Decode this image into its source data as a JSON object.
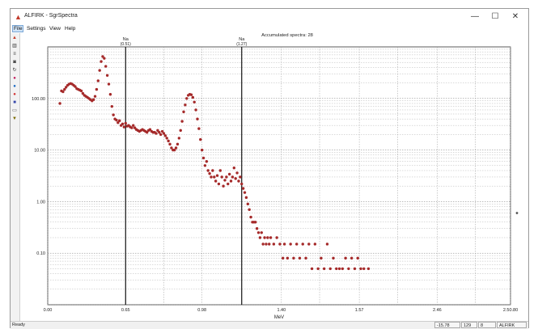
{
  "window": {
    "title": "ALFIRK - SgrSpectra",
    "icon": "alfirk-app-icon",
    "minimize": "—",
    "maximize": "☐",
    "close": "✕"
  },
  "menu": {
    "items": [
      {
        "label": "File",
        "active": true
      },
      {
        "label": "Settings",
        "active": false
      },
      {
        "label": "View",
        "active": false
      },
      {
        "label": "Help",
        "active": false
      }
    ]
  },
  "toolbar": {
    "icons": [
      "chart-icon",
      "bars-icon",
      "list-icon",
      "camera-icon",
      "refresh-icon",
      "ca-icon",
      "sc-icon",
      "cobalt-icon",
      "co-icon",
      "print-icon",
      "filter-icon"
    ]
  },
  "status": {
    "text": "Ready",
    "panes": [
      "-15.78",
      "129",
      "8",
      "ALFIRK"
    ]
  },
  "chart_data": {
    "type": "scatter",
    "title": "Accumulated spectra: 28",
    "xlabel": "MeV",
    "ylabel": "",
    "y_scale": "log",
    "xlim": [
      0.0,
      3.03
    ],
    "ylim": [
      0.01,
      1000
    ],
    "grid": true,
    "x_ticks": [
      "0.00",
      "0.65",
      "0.98",
      "1.40",
      "1.57",
      "2.46",
      "2.50.80"
    ],
    "y_ticks": [
      "100.00",
      "10.00",
      "1.00",
      "0.10"
    ],
    "markers": [
      {
        "label": "Na",
        "sublabel": "(0.51)",
        "x": 0.51
      },
      {
        "label": "Na",
        "sublabel": "(1.27)",
        "x": 1.27
      }
    ],
    "series": [
      {
        "color": "#a52a2a",
        "points": [
          [
            0.08,
            80
          ],
          [
            0.09,
            140
          ],
          [
            0.1,
            135
          ],
          [
            0.11,
            150
          ],
          [
            0.12,
            165
          ],
          [
            0.13,
            180
          ],
          [
            0.14,
            190
          ],
          [
            0.15,
            195
          ],
          [
            0.16,
            190
          ],
          [
            0.17,
            180
          ],
          [
            0.18,
            170
          ],
          [
            0.19,
            155
          ],
          [
            0.2,
            150
          ],
          [
            0.21,
            145
          ],
          [
            0.22,
            140
          ],
          [
            0.23,
            125
          ],
          [
            0.24,
            115
          ],
          [
            0.25,
            110
          ],
          [
            0.26,
            105
          ],
          [
            0.27,
            100
          ],
          [
            0.28,
            95
          ],
          [
            0.29,
            90
          ],
          [
            0.3,
            95
          ],
          [
            0.31,
            110
          ],
          [
            0.32,
            150
          ],
          [
            0.33,
            220
          ],
          [
            0.34,
            350
          ],
          [
            0.35,
            520
          ],
          [
            0.36,
            650
          ],
          [
            0.37,
            600
          ],
          [
            0.38,
            420
          ],
          [
            0.39,
            280
          ],
          [
            0.4,
            190
          ],
          [
            0.41,
            120
          ],
          [
            0.42,
            70
          ],
          [
            0.43,
            48
          ],
          [
            0.44,
            40
          ],
          [
            0.45,
            38
          ],
          [
            0.46,
            34
          ],
          [
            0.47,
            37
          ],
          [
            0.48,
            30
          ],
          [
            0.49,
            32
          ],
          [
            0.5,
            28
          ],
          [
            0.51,
            33
          ],
          [
            0.52,
            29
          ],
          [
            0.53,
            30
          ],
          [
            0.54,
            28
          ],
          [
            0.55,
            27
          ],
          [
            0.56,
            30
          ],
          [
            0.57,
            27
          ],
          [
            0.58,
            25
          ],
          [
            0.59,
            24
          ],
          [
            0.6,
            23
          ],
          [
            0.61,
            24
          ],
          [
            0.62,
            25
          ],
          [
            0.63,
            24
          ],
          [
            0.64,
            23
          ],
          [
            0.65,
            22
          ],
          [
            0.66,
            24
          ],
          [
            0.67,
            25
          ],
          [
            0.68,
            23
          ],
          [
            0.69,
            22
          ],
          [
            0.7,
            22
          ],
          [
            0.71,
            21
          ],
          [
            0.72,
            24
          ],
          [
            0.73,
            22
          ],
          [
            0.74,
            20
          ],
          [
            0.75,
            23
          ],
          [
            0.76,
            21
          ],
          [
            0.77,
            19
          ],
          [
            0.78,
            17
          ],
          [
            0.79,
            15
          ],
          [
            0.8,
            13
          ],
          [
            0.81,
            11
          ],
          [
            0.82,
            10
          ],
          [
            0.83,
            10
          ],
          [
            0.84,
            11
          ],
          [
            0.85,
            13
          ],
          [
            0.86,
            17
          ],
          [
            0.87,
            24
          ],
          [
            0.88,
            36
          ],
          [
            0.89,
            55
          ],
          [
            0.9,
            75
          ],
          [
            0.91,
            100
          ],
          [
            0.92,
            115
          ],
          [
            0.93,
            120
          ],
          [
            0.94,
            118
          ],
          [
            0.95,
            105
          ],
          [
            0.96,
            85
          ],
          [
            0.97,
            60
          ],
          [
            0.98,
            40
          ],
          [
            0.99,
            26
          ],
          [
            1.0,
            16
          ],
          [
            1.01,
            10
          ],
          [
            1.02,
            7
          ],
          [
            1.03,
            5
          ],
          [
            1.04,
            6
          ],
          [
            1.05,
            4
          ],
          [
            1.06,
            3.5
          ],
          [
            1.07,
            3
          ],
          [
            1.08,
            4
          ],
          [
            1.09,
            3
          ],
          [
            1.1,
            2.5
          ],
          [
            1.11,
            3.2
          ],
          [
            1.12,
            2.2
          ],
          [
            1.13,
            4
          ],
          [
            1.14,
            3
          ],
          [
            1.15,
            2
          ],
          [
            1.16,
            2.6
          ],
          [
            1.17,
            3
          ],
          [
            1.18,
            2.2
          ],
          [
            1.19,
            3.4
          ],
          [
            1.2,
            2.5
          ],
          [
            1.21,
            3
          ],
          [
            1.22,
            4.5
          ],
          [
            1.23,
            2.8
          ],
          [
            1.24,
            3.6
          ],
          [
            1.25,
            2.5
          ],
          [
            1.26,
            3
          ],
          [
            1.27,
            2.2
          ],
          [
            1.28,
            1.8
          ],
          [
            1.29,
            1.5
          ],
          [
            1.3,
            1.2
          ],
          [
            1.31,
            0.9
          ],
          [
            1.32,
            0.7
          ],
          [
            1.33,
            0.5
          ],
          [
            1.34,
            0.4
          ],
          [
            1.35,
            0.4
          ],
          [
            1.36,
            0.4
          ],
          [
            1.37,
            0.3
          ],
          [
            1.38,
            0.25
          ],
          [
            1.39,
            0.2
          ],
          [
            1.4,
            0.25
          ],
          [
            1.41,
            0.15
          ],
          [
            1.42,
            0.2
          ],
          [
            1.43,
            0.15
          ],
          [
            1.44,
            0.2
          ],
          [
            1.45,
            0.15
          ],
          [
            1.46,
            0.2
          ],
          [
            1.48,
            0.15
          ],
          [
            1.5,
            0.2
          ],
          [
            1.52,
            0.15
          ],
          [
            1.54,
            0.08
          ],
          [
            1.55,
            0.15
          ],
          [
            1.57,
            0.08
          ],
          [
            1.59,
            0.15
          ],
          [
            1.61,
            0.08
          ],
          [
            1.63,
            0.15
          ],
          [
            1.65,
            0.08
          ],
          [
            1.67,
            0.15
          ],
          [
            1.69,
            0.08
          ],
          [
            1.71,
            0.15
          ],
          [
            1.73,
            0.05
          ],
          [
            1.75,
            0.15
          ],
          [
            1.77,
            0.05
          ],
          [
            1.79,
            0.08
          ],
          [
            1.81,
            0.05
          ],
          [
            1.83,
            0.15
          ],
          [
            1.85,
            0.05
          ],
          [
            1.87,
            0.08
          ],
          [
            1.89,
            0.05
          ],
          [
            1.91,
            0.05
          ],
          [
            1.93,
            0.05
          ],
          [
            1.95,
            0.08
          ],
          [
            1.97,
            0.05
          ],
          [
            1.99,
            0.08
          ],
          [
            2.01,
            0.05
          ],
          [
            2.03,
            0.08
          ],
          [
            2.05,
            0.05
          ],
          [
            2.07,
            0.05
          ],
          [
            2.1,
            0.05
          ]
        ]
      }
    ]
  }
}
